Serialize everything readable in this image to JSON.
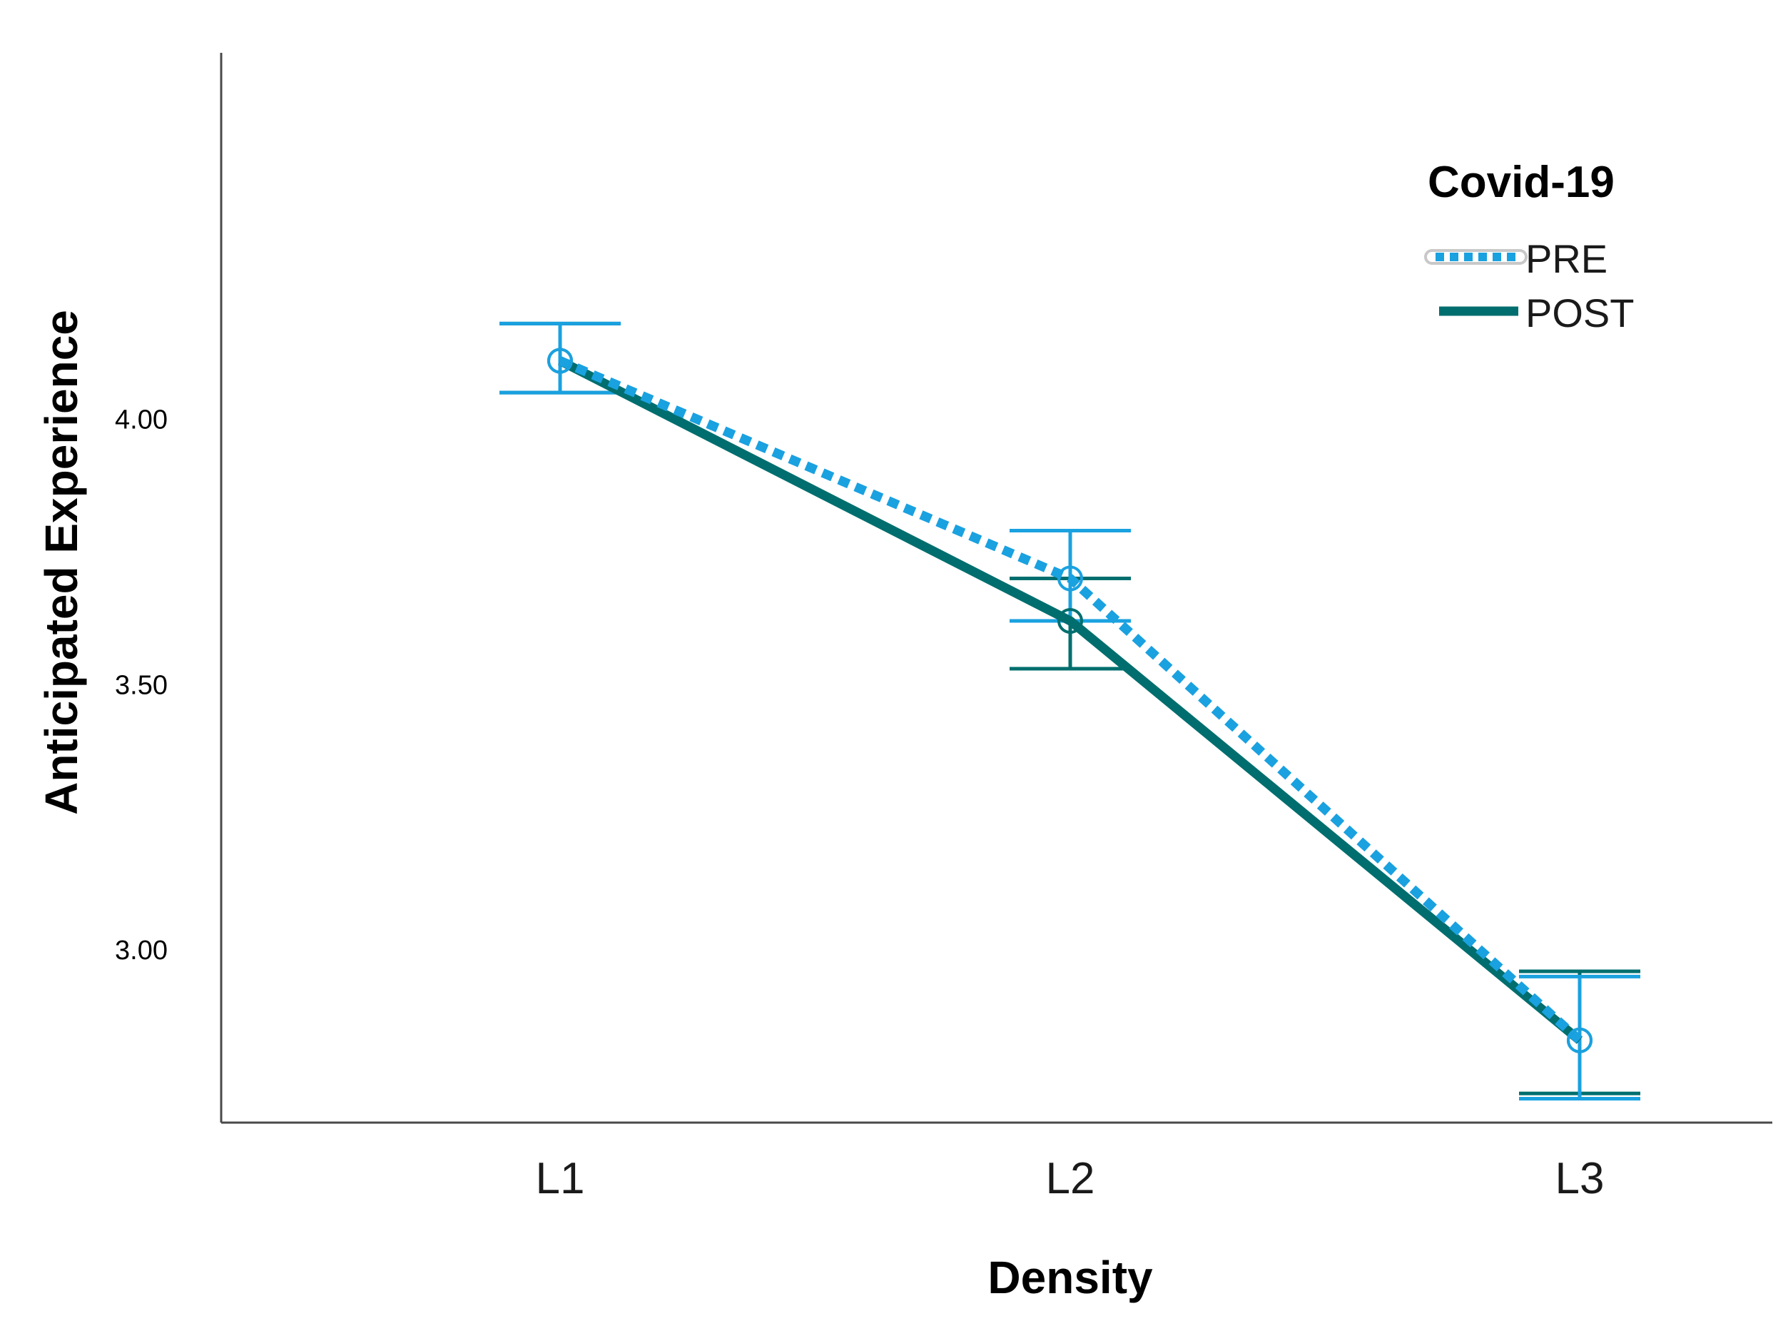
{
  "chart_data": {
    "type": "line",
    "title": "",
    "xlabel": "Density",
    "ylabel": "Anticipated Experience",
    "categories": [
      "L1",
      "L2",
      "L3"
    ],
    "ylim": [
      2.675,
      4.69
    ],
    "yticks": [
      3.0,
      3.5,
      4.0
    ],
    "ytick_labels": [
      "3.00",
      "3.50",
      "4.00"
    ],
    "grid": false,
    "legend": {
      "title": "Covid-19",
      "position": "top-right"
    },
    "series": [
      {
        "name": "PRE",
        "style": "dotted",
        "color": "#1aa1e0",
        "values": [
          4.11,
          3.7,
          2.83
        ],
        "error_low": [
          4.05,
          3.62,
          2.72
        ],
        "error_high": [
          4.18,
          3.79,
          2.95
        ]
      },
      {
        "name": "POST",
        "style": "solid",
        "color": "#006e6e",
        "values": [
          4.11,
          3.62,
          2.83
        ],
        "error_low": [
          4.05,
          3.53,
          2.73
        ],
        "error_high": [
          4.18,
          3.7,
          2.96
        ]
      }
    ]
  }
}
